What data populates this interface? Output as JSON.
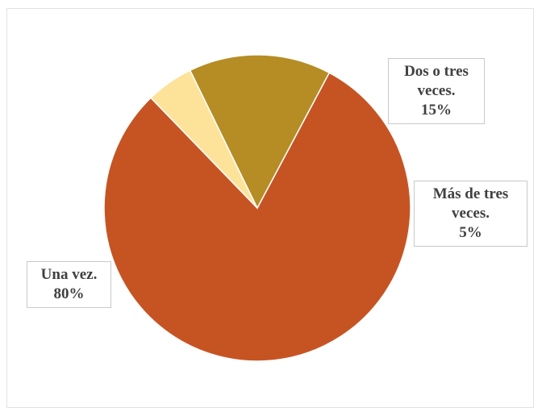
{
  "chart_data": {
    "type": "pie",
    "categories": [
      "Una vez.",
      "Más de tres veces.",
      "Dos o tres veces."
    ],
    "values": [
      80,
      5,
      15
    ],
    "unit": "%",
    "colors": [
      "#C65423",
      "#FDE29A",
      "#B58D24"
    ],
    "data_labels": [
      {
        "category_line1": "Una vez.",
        "category_line2": "",
        "value": "80%"
      },
      {
        "category_line1": "Más de tres",
        "category_line2": "veces.",
        "value": "5%"
      },
      {
        "category_line1": "Dos o tres",
        "category_line2": "veces.",
        "value": "15%"
      }
    ],
    "title": "",
    "legend": "none"
  }
}
